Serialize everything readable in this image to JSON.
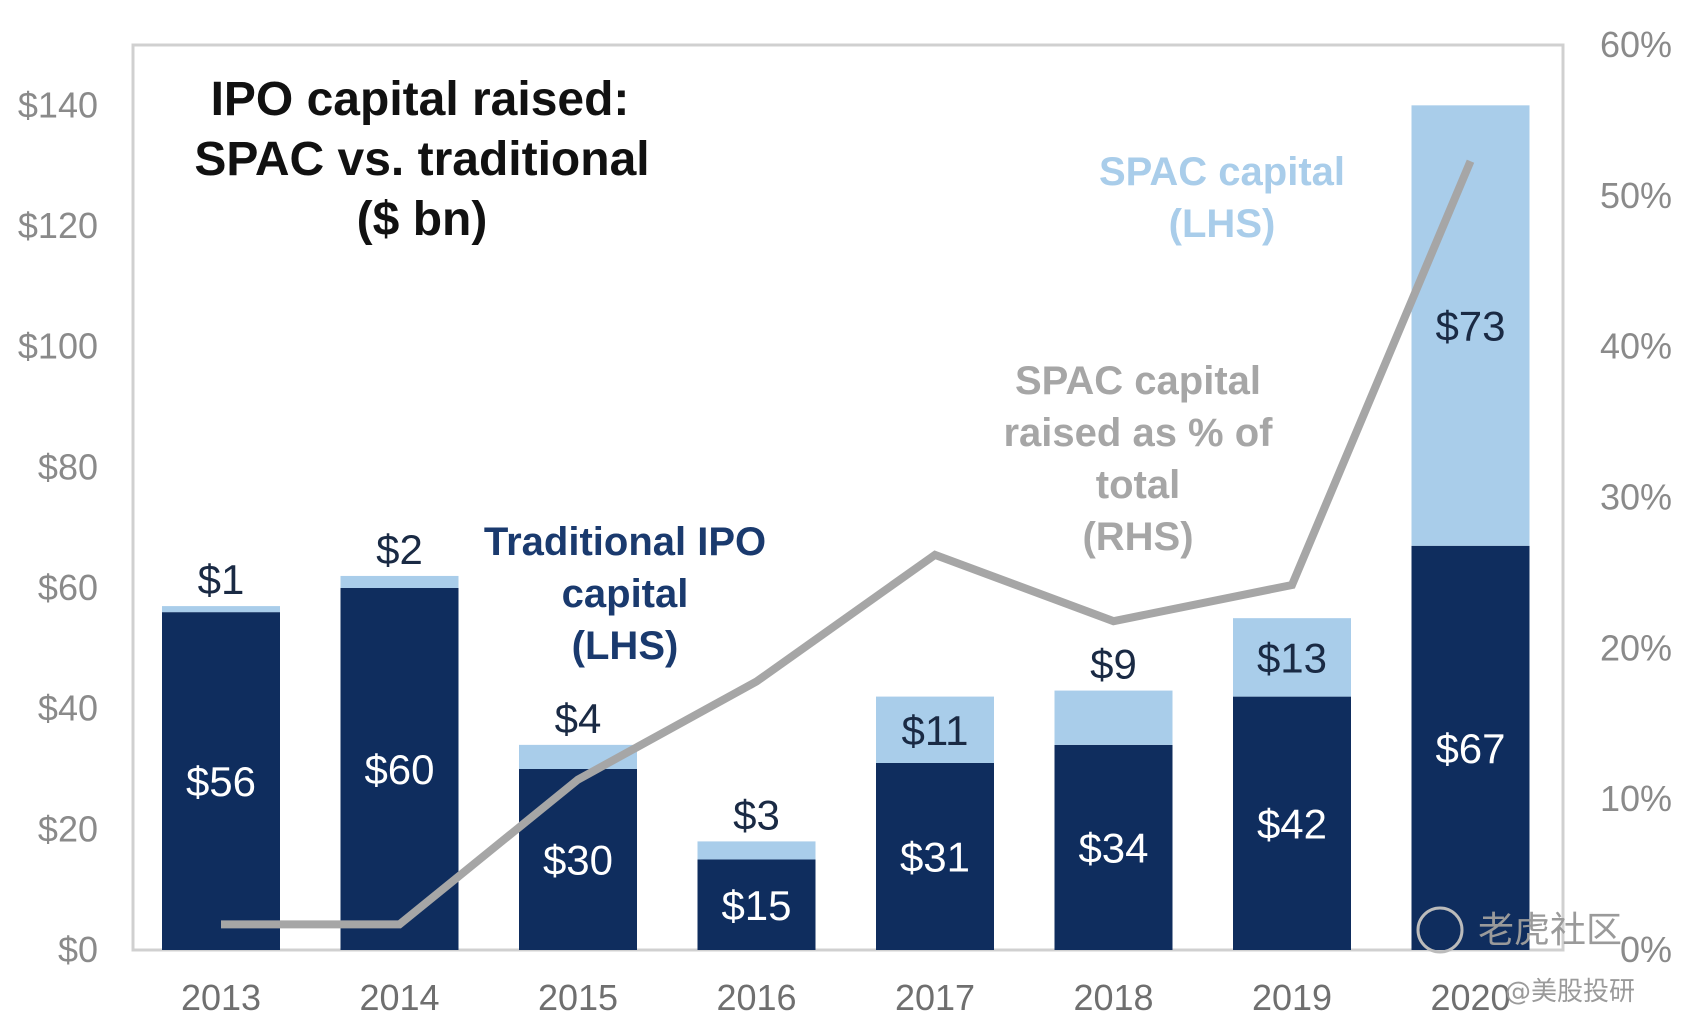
{
  "chart_data": {
    "type": "bar",
    "title": [
      "IPO capital raised:",
      "SPAC vs. traditional",
      "($ bn)"
    ],
    "categories": [
      "2013",
      "2014",
      "2015",
      "2016",
      "2017",
      "2018",
      "2019",
      "2020"
    ],
    "series": [
      {
        "name": "Traditional IPO capital (LHS)",
        "values": [
          56,
          60,
          30,
          15,
          31,
          34,
          42,
          67
        ],
        "labels": [
          "$56",
          "$60",
          "$30",
          "$15",
          "$31",
          "$34",
          "$42",
          "$67"
        ],
        "color": "#0f2d5e"
      },
      {
        "name": "SPAC capital (LHS)",
        "values": [
          1,
          2,
          4,
          3,
          11,
          9,
          13,
          73
        ],
        "labels": [
          "$1",
          "$2",
          "$4",
          "$3",
          "$11",
          "$9",
          "$13",
          "$73"
        ],
        "color": "#a9cdea"
      },
      {
        "name": "SPAC capital raised as % of total (RHS)",
        "type": "line",
        "axis": "right",
        "values": [
          1.7,
          1.7,
          11.3,
          17.8,
          26.2,
          21.8,
          24.2,
          52.3
        ],
        "color": "#a6a6a6"
      }
    ],
    "left_axis": {
      "ylim": [
        0,
        150
      ],
      "ticks": [
        0,
        20,
        40,
        60,
        80,
        100,
        120,
        140
      ],
      "tick_labels": [
        "$0",
        "$20",
        "$40",
        "$60",
        "$80",
        "$100",
        "$120",
        "$140"
      ]
    },
    "right_axis": {
      "ylim": [
        0,
        60
      ],
      "ticks": [
        0,
        10,
        20,
        30,
        40,
        50,
        60
      ],
      "tick_labels": [
        "0%",
        "10%",
        "20%",
        "30%",
        "40%",
        "50%",
        "60%"
      ]
    },
    "annotations": {
      "traditional": [
        "Traditional IPO",
        "capital",
        "(LHS)"
      ],
      "spac": [
        "SPAC capital",
        "(LHS)"
      ],
      "pct": [
        "SPAC capital",
        "raised as % of",
        "total",
        "(RHS)"
      ]
    },
    "grid": false,
    "legend": "none",
    "watermark": {
      "line1": "老虎社区",
      "line2": "@美股投研"
    }
  }
}
